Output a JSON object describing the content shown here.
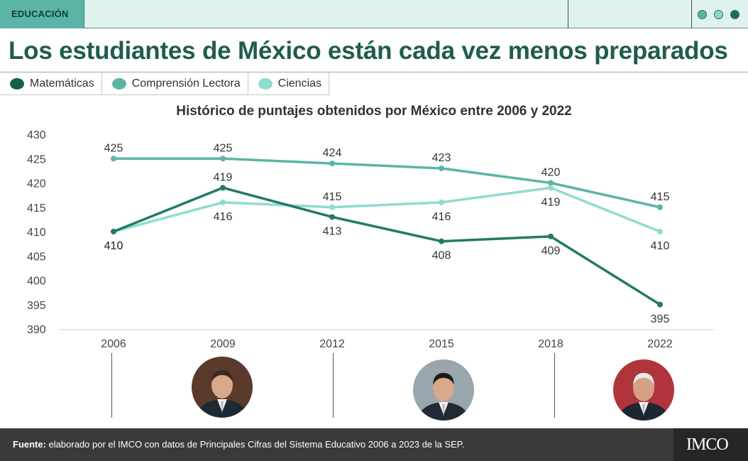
{
  "header": {
    "tag": "EDUCACIÓN",
    "dot_colors": [
      "#5bb5a6",
      "#8fd6c9",
      "#1f6b5a"
    ]
  },
  "headline": "Los estudiantes de México están cada vez menos preparados",
  "legend": [
    {
      "label": "Matemáticas",
      "color": "#155e4f"
    },
    {
      "label": "Comprensión Lectora",
      "color": "#5bb5a6"
    },
    {
      "label": "Ciencias",
      "color": "#8fdccf"
    }
  ],
  "chart_data": {
    "type": "line",
    "title": "Histórico de puntajes obtenidos por México entre 2006 y 2022",
    "categories": [
      "2006",
      "2009",
      "2012",
      "2015",
      "2018",
      "2022"
    ],
    "ylim": [
      390,
      430
    ],
    "yticks": [
      390,
      395,
      400,
      405,
      410,
      415,
      420,
      425,
      430
    ],
    "series": [
      {
        "name": "Matemáticas",
        "color": "#237a67",
        "values": [
          410,
          419,
          413,
          408,
          409,
          395
        ],
        "label_pos": [
          "below",
          "above",
          "below",
          "below",
          "below",
          "below"
        ]
      },
      {
        "name": "Comprensión Lectora",
        "color": "#5bb5a6",
        "values": [
          425,
          425,
          424,
          423,
          420,
          415
        ],
        "label_pos": [
          "above",
          "above",
          "above",
          "above",
          "above",
          "above"
        ]
      },
      {
        "name": "Ciencias",
        "color": "#8fdccf",
        "values": [
          410,
          416,
          415,
          416,
          419,
          410
        ],
        "label_pos": [
          "below",
          "below",
          "above",
          "below",
          "below",
          "below"
        ]
      }
    ]
  },
  "presidents": [
    {
      "name": "presidente-2006-2012",
      "skin": "#d9a78a",
      "hair": "#3a2a22",
      "suit": "#1e2a33",
      "bg": "#5a3a2a"
    },
    {
      "name": "presidente-2012-2018",
      "skin": "#d8a888",
      "hair": "#1a1a1a",
      "suit": "#222a33",
      "bg": "#9aa6ad"
    },
    {
      "name": "presidente-2018-2024",
      "skin": "#d5a184",
      "hair": "#e8e8e8",
      "suit": "#1d2633",
      "bg": "#b0343c"
    }
  ],
  "footer": {
    "label": "Fuente:",
    "text": " elaborado por el IMCO con  datos de Principales Cifras del Sistema Educativo 2006 a 2023 de la SEP.",
    "logo": "IMCO"
  }
}
